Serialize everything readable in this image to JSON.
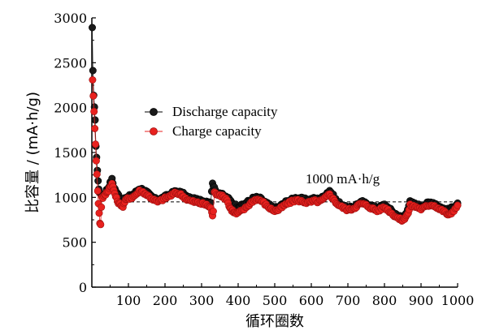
{
  "chart_data": {
    "type": "scatter",
    "xlabel": "循环圈数",
    "ylabel": "比容量 / (mA·h/g)",
    "xlim": [
      0,
      1000
    ],
    "ylim": [
      0,
      3000
    ],
    "xticks": [
      100,
      200,
      300,
      400,
      500,
      600,
      700,
      800,
      900,
      1000
    ],
    "yticks": [
      0,
      500,
      1000,
      1500,
      2000,
      2500,
      3000
    ],
    "grid": false,
    "legend_position": "upper-middle",
    "annotation": {
      "text": "1000 mA·h/g",
      "reference_y": 950
    },
    "series": [
      {
        "name": "Discharge capacity",
        "color": "#1a1a1a",
        "points": [
          [
            1,
            2880
          ],
          [
            3,
            2400
          ],
          [
            5,
            2150
          ],
          [
            7,
            2010
          ],
          [
            9,
            1850
          ],
          [
            11,
            1580
          ],
          [
            13,
            1450
          ],
          [
            15,
            1300
          ],
          [
            17,
            1180
          ],
          [
            19,
            1100
          ],
          [
            21,
            1060
          ],
          [
            25,
            1030
          ],
          [
            30,
            1010
          ],
          [
            35,
            1030
          ],
          [
            40,
            1080
          ],
          [
            45,
            1110
          ],
          [
            50,
            1160
          ],
          [
            55,
            1200
          ],
          [
            60,
            1120
          ],
          [
            70,
            1040
          ],
          [
            80,
            990
          ],
          [
            90,
            980
          ],
          [
            100,
            1010
          ],
          [
            110,
            1030
          ],
          [
            120,
            1060
          ],
          [
            130,
            1100
          ],
          [
            140,
            1090
          ],
          [
            150,
            1060
          ],
          [
            160,
            1020
          ],
          [
            170,
            990
          ],
          [
            180,
            970
          ],
          [
            190,
            990
          ],
          [
            200,
            1010
          ],
          [
            210,
            1030
          ],
          [
            220,
            1050
          ],
          [
            230,
            1070
          ],
          [
            240,
            1060
          ],
          [
            250,
            1040
          ],
          [
            260,
            1010
          ],
          [
            270,
            990
          ],
          [
            280,
            980
          ],
          [
            290,
            970
          ],
          [
            300,
            965
          ],
          [
            310,
            960
          ],
          [
            320,
            955
          ],
          [
            325,
            950
          ],
          [
            330,
            1170
          ],
          [
            335,
            1100
          ],
          [
            340,
            1060
          ],
          [
            350,
            1050
          ],
          [
            360,
            1020
          ],
          [
            370,
            1000
          ],
          [
            380,
            960
          ],
          [
            390,
            920
          ],
          [
            400,
            900
          ],
          [
            410,
            910
          ],
          [
            420,
            940
          ],
          [
            430,
            960
          ],
          [
            440,
            990
          ],
          [
            450,
            1000
          ],
          [
            460,
            990
          ],
          [
            470,
            960
          ],
          [
            480,
            930
          ],
          [
            490,
            900
          ],
          [
            500,
            880
          ],
          [
            510,
            890
          ],
          [
            520,
            920
          ],
          [
            530,
            950
          ],
          [
            540,
            970
          ],
          [
            550,
            980
          ],
          [
            560,
            1000
          ],
          [
            570,
            990
          ],
          [
            580,
            980
          ],
          [
            590,
            970
          ],
          [
            600,
            980
          ],
          [
            610,
            990
          ],
          [
            620,
            980
          ],
          [
            630,
            1000
          ],
          [
            640,
            1040
          ],
          [
            650,
            1080
          ],
          [
            660,
            1020
          ],
          [
            670,
            960
          ],
          [
            680,
            930
          ],
          [
            690,
            900
          ],
          [
            700,
            880
          ],
          [
            710,
            890
          ],
          [
            720,
            910
          ],
          [
            730,
            940
          ],
          [
            740,
            950
          ],
          [
            750,
            930
          ],
          [
            760,
            920
          ],
          [
            770,
            900
          ],
          [
            780,
            880
          ],
          [
            790,
            900
          ],
          [
            800,
            920
          ],
          [
            810,
            890
          ],
          [
            820,
            850
          ],
          [
            830,
            820
          ],
          [
            840,
            790
          ],
          [
            850,
            780
          ],
          [
            855,
            800
          ],
          [
            860,
            840
          ],
          [
            870,
            950
          ],
          [
            880,
            930
          ],
          [
            890,
            920
          ],
          [
            900,
            900
          ],
          [
            910,
            920
          ],
          [
            920,
            940
          ],
          [
            930,
            950
          ],
          [
            940,
            930
          ],
          [
            950,
            900
          ],
          [
            960,
            880
          ],
          [
            970,
            860
          ],
          [
            980,
            870
          ],
          [
            990,
            900
          ],
          [
            1000,
            940
          ]
        ]
      },
      {
        "name": "Charge capacity",
        "color": "#e8221f",
        "points": [
          [
            2,
            2320
          ],
          [
            4,
            2120
          ],
          [
            6,
            1950
          ],
          [
            8,
            1780
          ],
          [
            10,
            1600
          ],
          [
            12,
            1420
          ],
          [
            14,
            1250
          ],
          [
            16,
            1080
          ],
          [
            18,
            930
          ],
          [
            20,
            820
          ],
          [
            22,
            720
          ],
          [
            24,
            700
          ],
          [
            26,
            900
          ],
          [
            28,
            1000
          ],
          [
            30,
            1000
          ],
          [
            35,
            1020
          ],
          [
            40,
            1050
          ],
          [
            45,
            1080
          ],
          [
            50,
            1120
          ],
          [
            55,
            1150
          ],
          [
            60,
            1080
          ],
          [
            65,
            1010
          ],
          [
            70,
            960
          ],
          [
            75,
            930
          ],
          [
            80,
            920
          ],
          [
            85,
            900
          ],
          [
            90,
            950
          ],
          [
            95,
            980
          ],
          [
            100,
            990
          ],
          [
            110,
            1000
          ],
          [
            120,
            1030
          ],
          [
            130,
            1070
          ],
          [
            140,
            1060
          ],
          [
            150,
            1030
          ],
          [
            160,
            1000
          ],
          [
            170,
            970
          ],
          [
            180,
            950
          ],
          [
            190,
            970
          ],
          [
            200,
            990
          ],
          [
            210,
            1010
          ],
          [
            220,
            1030
          ],
          [
            230,
            1050
          ],
          [
            240,
            1040
          ],
          [
            250,
            1010
          ],
          [
            260,
            980
          ],
          [
            270,
            960
          ],
          [
            280,
            950
          ],
          [
            290,
            940
          ],
          [
            300,
            930
          ],
          [
            310,
            920
          ],
          [
            320,
            900
          ],
          [
            325,
            880
          ],
          [
            328,
            830
          ],
          [
            330,
            800
          ],
          [
            332,
            850
          ],
          [
            335,
            1050
          ],
          [
            340,
            1040
          ],
          [
            350,
            1030
          ],
          [
            360,
            1000
          ],
          [
            370,
            980
          ],
          [
            375,
            900
          ],
          [
            380,
            870
          ],
          [
            385,
            850
          ],
          [
            390,
            830
          ],
          [
            395,
            820
          ],
          [
            400,
            830
          ],
          [
            410,
            850
          ],
          [
            420,
            880
          ],
          [
            430,
            920
          ],
          [
            440,
            960
          ],
          [
            450,
            980
          ],
          [
            460,
            970
          ],
          [
            470,
            940
          ],
          [
            480,
            900
          ],
          [
            490,
            870
          ],
          [
            500,
            850
          ],
          [
            510,
            860
          ],
          [
            520,
            890
          ],
          [
            530,
            920
          ],
          [
            540,
            940
          ],
          [
            550,
            960
          ],
          [
            560,
            970
          ],
          [
            570,
            960
          ],
          [
            580,
            950
          ],
          [
            590,
            940
          ],
          [
            600,
            950
          ],
          [
            610,
            960
          ],
          [
            620,
            950
          ],
          [
            630,
            970
          ],
          [
            640,
            1000
          ],
          [
            650,
            1040
          ],
          [
            660,
            980
          ],
          [
            670,
            930
          ],
          [
            680,
            900
          ],
          [
            690,
            880
          ],
          [
            700,
            860
          ],
          [
            710,
            870
          ],
          [
            720,
            890
          ],
          [
            730,
            920
          ],
          [
            740,
            930
          ],
          [
            750,
            910
          ],
          [
            760,
            890
          ],
          [
            770,
            870
          ],
          [
            780,
            850
          ],
          [
            790,
            870
          ],
          [
            800,
            890
          ],
          [
            810,
            860
          ],
          [
            820,
            820
          ],
          [
            830,
            790
          ],
          [
            840,
            760
          ],
          [
            845,
            750
          ],
          [
            850,
            745
          ],
          [
            855,
            770
          ],
          [
            860,
            800
          ],
          [
            865,
            820
          ],
          [
            870,
            910
          ],
          [
            880,
            900
          ],
          [
            890,
            890
          ],
          [
            900,
            870
          ],
          [
            910,
            890
          ],
          [
            920,
            910
          ],
          [
            930,
            920
          ],
          [
            940,
            900
          ],
          [
            950,
            870
          ],
          [
            960,
            850
          ],
          [
            970,
            820
          ],
          [
            975,
            800
          ],
          [
            980,
            810
          ],
          [
            990,
            860
          ],
          [
            1000,
            900
          ]
        ]
      }
    ]
  }
}
